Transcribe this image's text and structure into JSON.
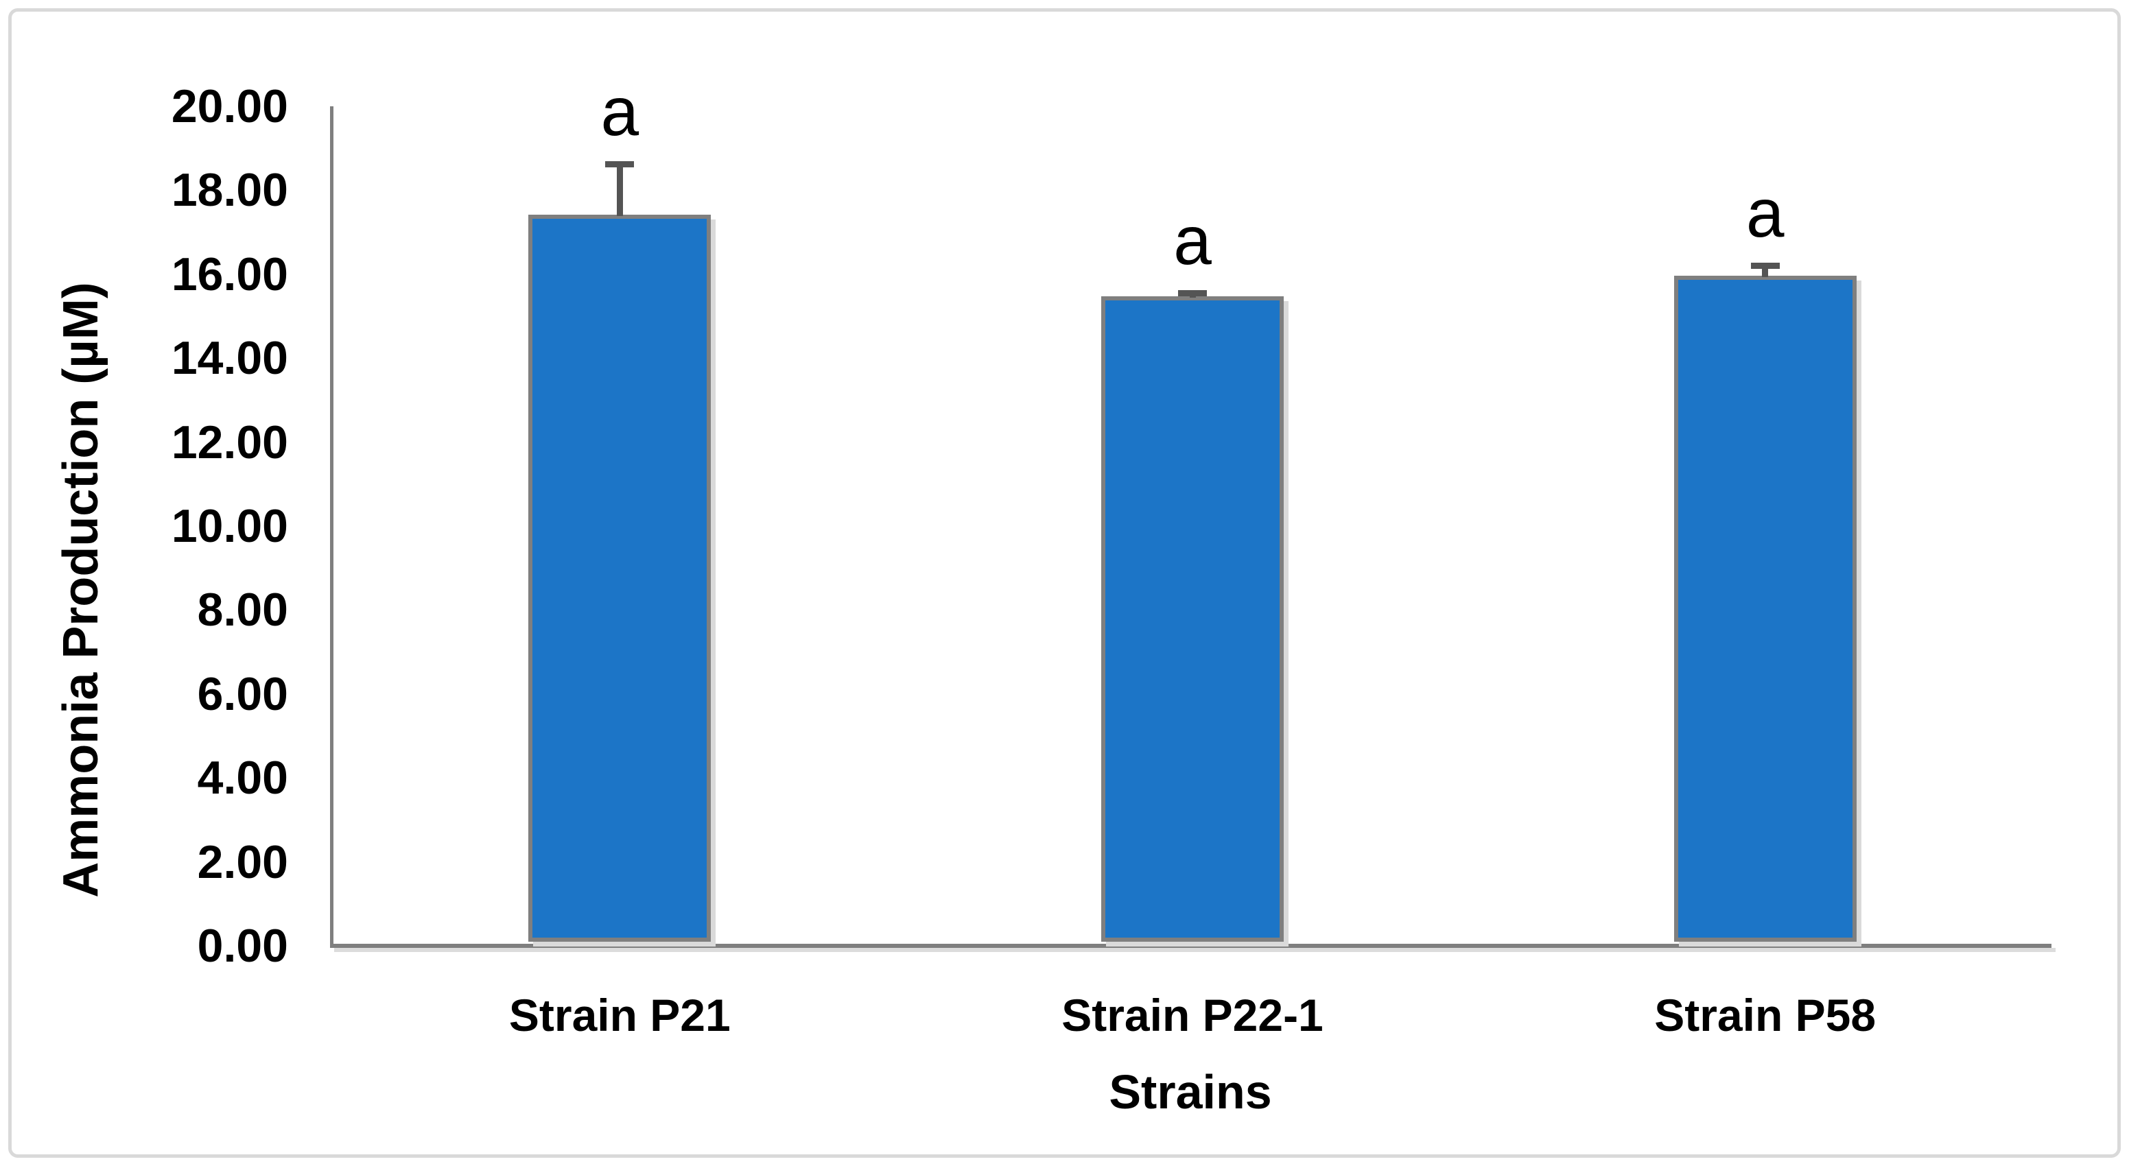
{
  "figure": {
    "background": "#FFFFFF",
    "border_color": "#D9D9D9"
  },
  "chart_data": {
    "type": "bar",
    "title": "",
    "xlabel": "Strains",
    "ylabel": "Ammonia Production (µM)",
    "categories": [
      "Strain P21",
      "Strain P22-1",
      "Strain P58"
    ],
    "values": [
      17.4,
      15.45,
      15.95
    ],
    "errors_plus": [
      1.28,
      0.15,
      0.3
    ],
    "point_labels": [
      "a",
      "a",
      "a"
    ],
    "ylim": [
      0,
      20
    ],
    "y_ticks": [
      0,
      2,
      4,
      6,
      8,
      10,
      12,
      14,
      16,
      18,
      20
    ],
    "y_tick_labels": [
      "0.00",
      "2.00",
      "4.00",
      "6.00",
      "8.00",
      "10.00",
      "12.00",
      "14.00",
      "16.00",
      "18.00",
      "20.00"
    ],
    "grid": false,
    "legend": "none",
    "bar_color": "#1C75C7",
    "bar_border_color": "#7F7F7F",
    "error_bar_color": "#545454",
    "axis_color": "#7F7F7F",
    "text_color": "#000000"
  }
}
